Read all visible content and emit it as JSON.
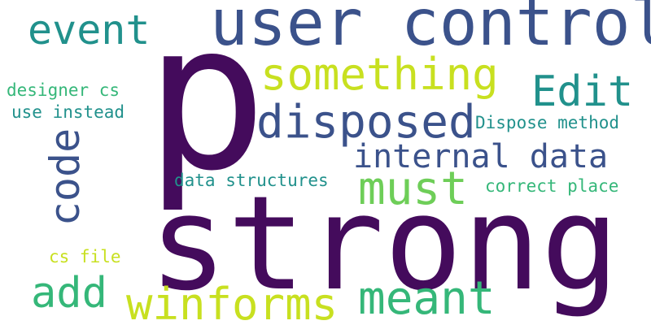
{
  "words": [
    {
      "text": "strong",
      "color": "#440b5c"
    },
    {
      "text": "p",
      "color": "#440b5c"
    },
    {
      "text": "user control",
      "color": "#3b528b"
    },
    {
      "text": "something",
      "color": "#c8e020"
    },
    {
      "text": "disposed",
      "color": "#3b528b"
    },
    {
      "text": "event",
      "color": "#21918c"
    },
    {
      "text": "Edit",
      "color": "#21918c"
    },
    {
      "text": "internal data",
      "color": "#3b528b"
    },
    {
      "text": "code",
      "color": "#3b528b"
    },
    {
      "text": "must",
      "color": "#6ece58"
    },
    {
      "text": "winforms",
      "color": "#c8e020"
    },
    {
      "text": "meant",
      "color": "#35b779"
    },
    {
      "text": "add",
      "color": "#35b779"
    },
    {
      "text": "designer cs",
      "color": "#35b779"
    },
    {
      "text": "use instead",
      "color": "#21918c"
    },
    {
      "text": "Dispose method",
      "color": "#21918c"
    },
    {
      "text": "data structures",
      "color": "#21918c"
    },
    {
      "text": "correct place",
      "color": "#35b779"
    },
    {
      "text": "cs file",
      "color": "#c8e020"
    }
  ]
}
